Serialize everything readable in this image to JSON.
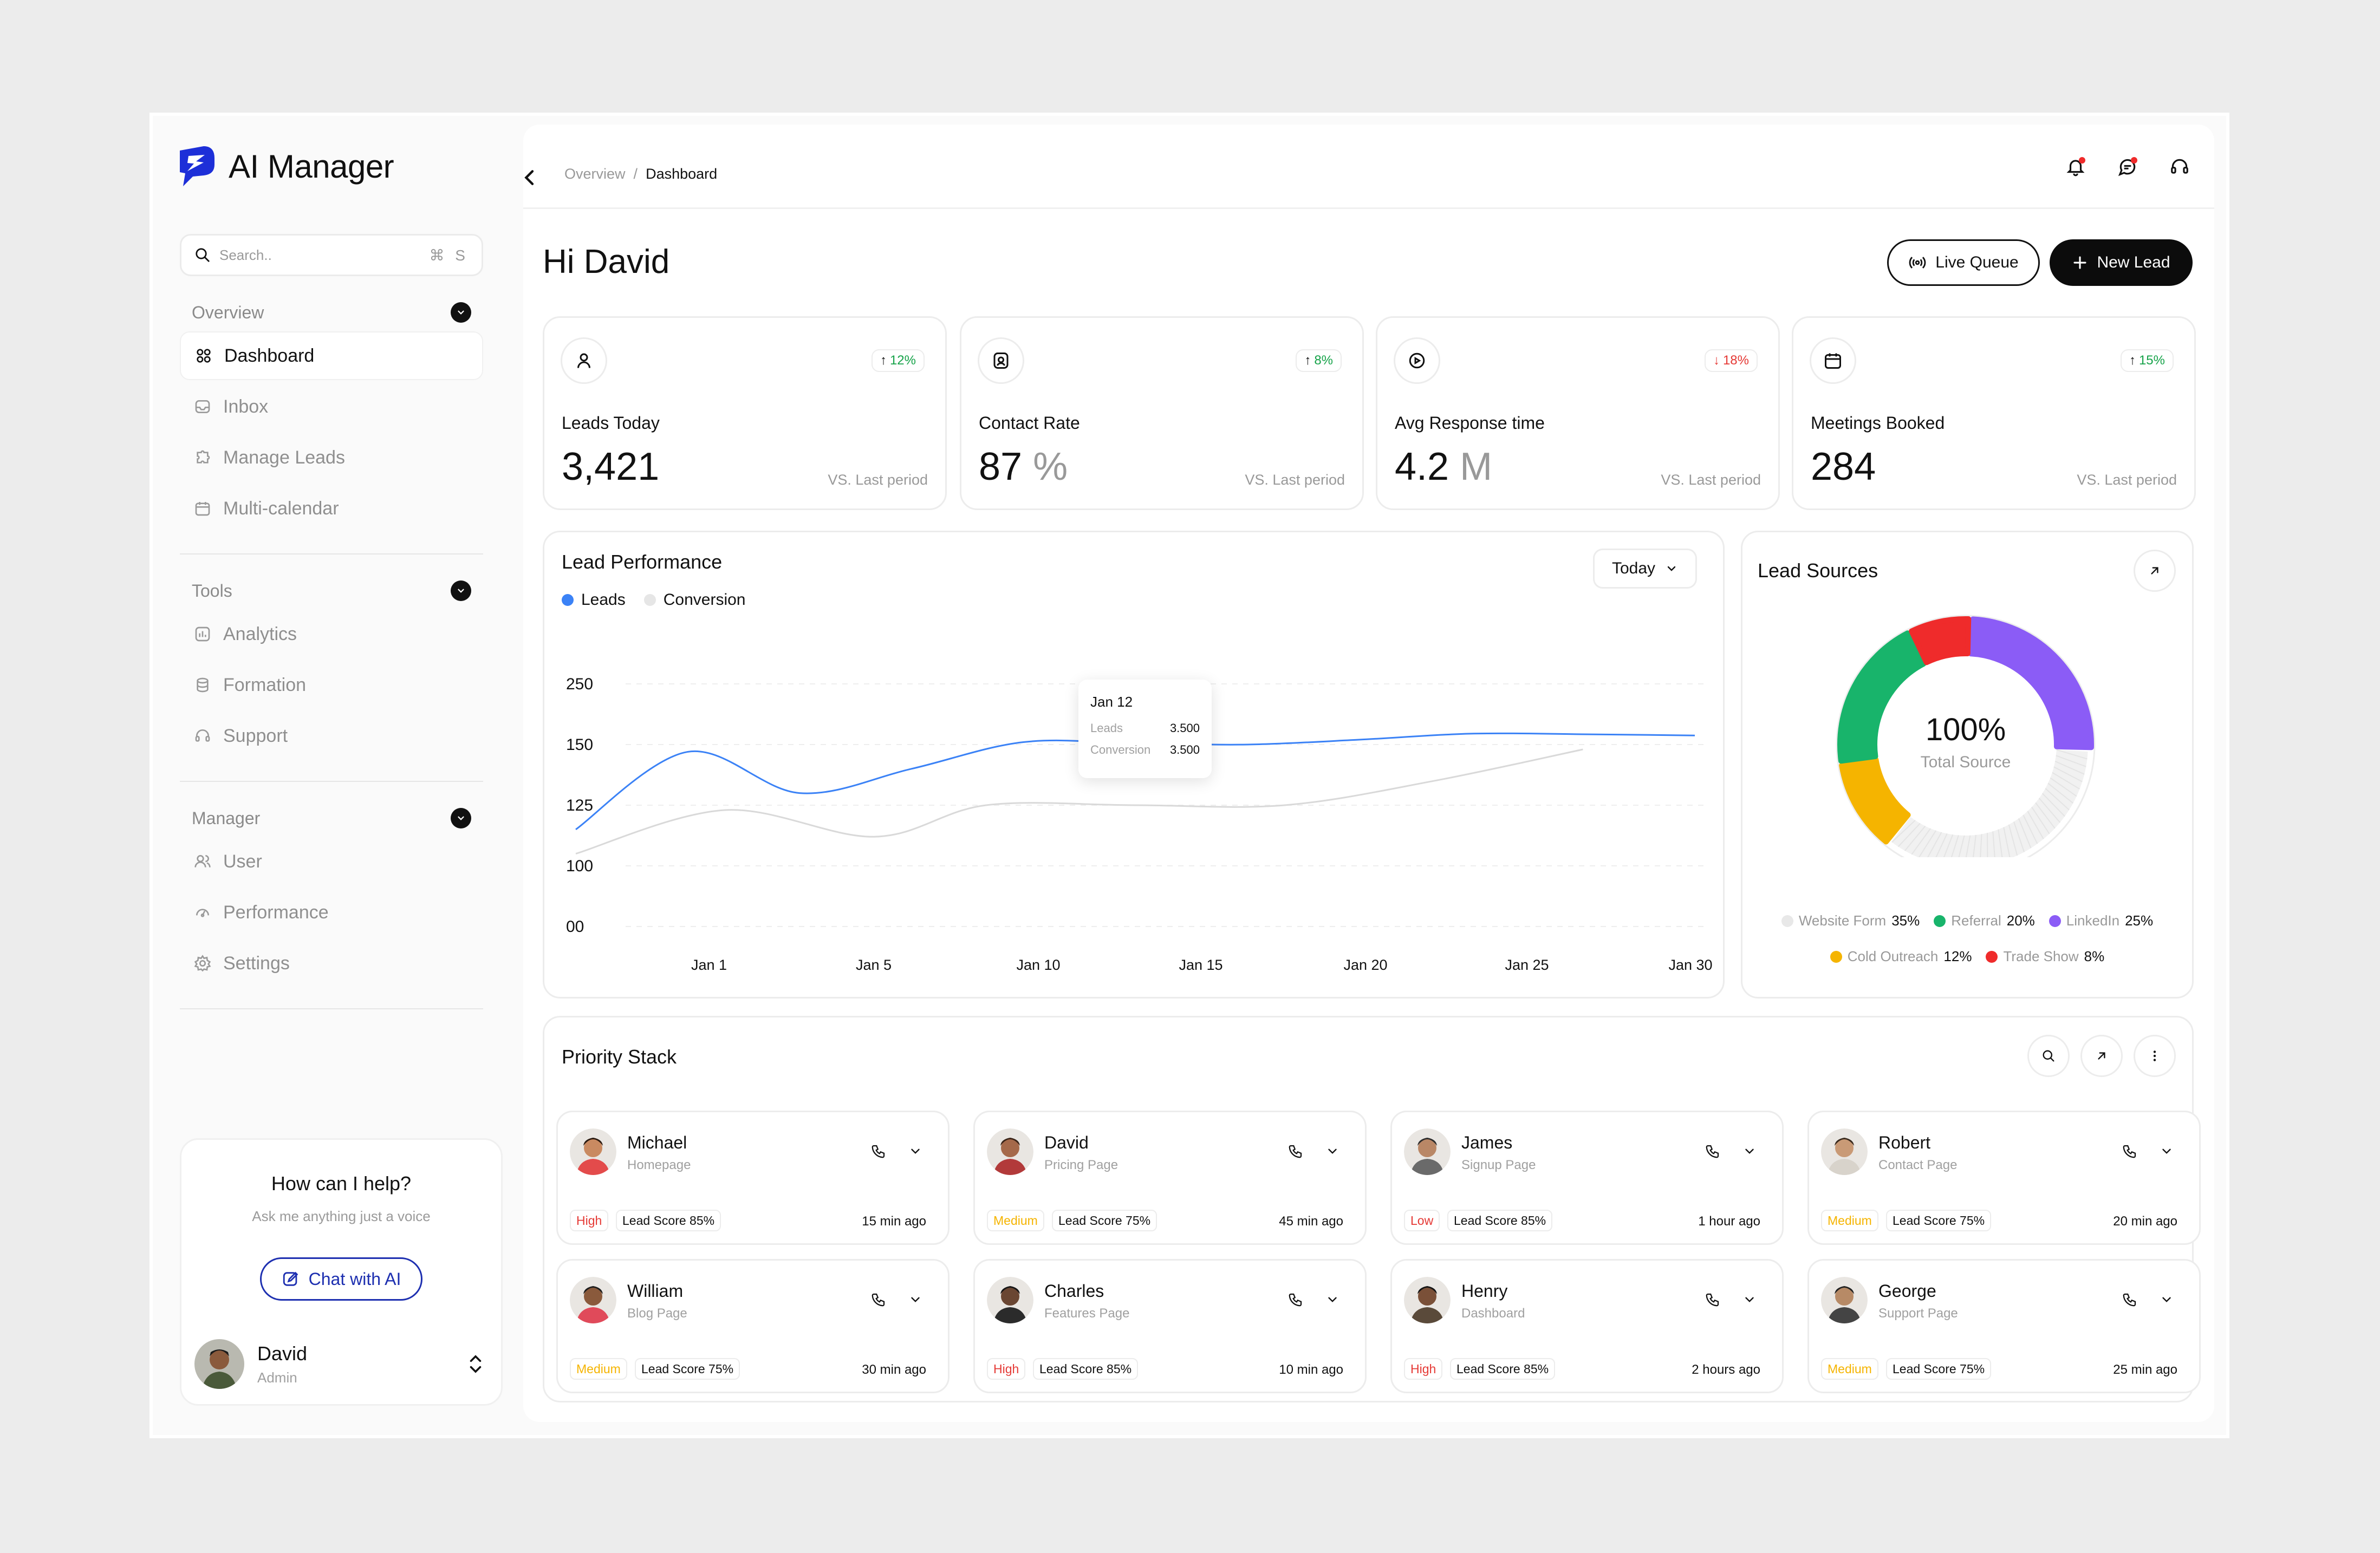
{
  "app": {
    "name": "AI Manager"
  },
  "search": {
    "placeholder": "Search..",
    "shortcut": "⌘ S"
  },
  "sidebar": {
    "sections": [
      {
        "title": "Overview",
        "items": [
          {
            "label": "Dashboard",
            "icon": "grid-icon",
            "active": true
          },
          {
            "label": "Inbox",
            "icon": "inbox-icon"
          },
          {
            "label": "Manage Leads",
            "icon": "puzzle-icon"
          },
          {
            "label": "Multi-calendar",
            "icon": "calendar-icon"
          }
        ]
      },
      {
        "title": "Tools",
        "items": [
          {
            "label": "Analytics",
            "icon": "analytics-icon"
          },
          {
            "label": "Formation",
            "icon": "database-icon"
          },
          {
            "label": "Support",
            "icon": "headset-icon"
          }
        ]
      },
      {
        "title": "Manager",
        "items": [
          {
            "label": "User",
            "icon": "users-icon"
          },
          {
            "label": "Performance",
            "icon": "performance-icon"
          },
          {
            "label": "Settings",
            "icon": "settings-icon"
          }
        ]
      }
    ],
    "help": {
      "title": "How can I help?",
      "subtitle": "Ask me anything just a voice",
      "button": "Chat with AI"
    },
    "user": {
      "name": "David",
      "role": "Admin"
    }
  },
  "topbar": {
    "crumb_parent": "Overview",
    "crumb_sep": "/",
    "crumb_current": "Dashboard"
  },
  "header": {
    "greeting": "Hi David",
    "live_queue": "Live Queue",
    "new_lead": "New Lead"
  },
  "stats": [
    {
      "label": "Leads Today",
      "value": "3,421",
      "unit": "",
      "change": "12%",
      "direction": "up",
      "note": "VS. Last period",
      "icon": "user-icon"
    },
    {
      "label": "Contact Rate",
      "value": "87",
      "unit": "%",
      "change": "8%",
      "direction": "up",
      "note": "VS. Last period",
      "icon": "contact-icon"
    },
    {
      "label": "Avg Response time",
      "value": "4.2",
      "unit": "M",
      "change": "18%",
      "direction": "down",
      "note": "VS. Last period",
      "icon": "clock-icon"
    },
    {
      "label": "Meetings Booked",
      "value": "284",
      "unit": "",
      "change": "15%",
      "direction": "up",
      "note": "VS. Last period",
      "icon": "calendar-icon"
    }
  ],
  "performance": {
    "title": "Lead Performance",
    "range": "Today",
    "legend": {
      "leads": "Leads",
      "conversion": "Conversion"
    },
    "tooltip": {
      "title": "Jan 12",
      "k1": "Leads",
      "v1": "3.500",
      "k2": "Conversion",
      "v2": "3.500"
    }
  },
  "chart_data": {
    "type": "line",
    "title": "Lead Performance",
    "y_tick_labels": [
      "250",
      "150",
      "125",
      "100",
      "00"
    ],
    "x_tick_labels": [
      "Jan 1",
      "Jan 5",
      "Jan 10",
      "Jan 15",
      "Jan 20",
      "Jan 25",
      "Jan 30"
    ],
    "grid": true,
    "legend": "top-left",
    "series": [
      {
        "name": "Leads",
        "color": "#3b82f6",
        "points": [
          [
            0,
            115
          ],
          [
            3,
            147
          ],
          [
            6,
            130
          ],
          [
            9,
            140
          ],
          [
            12,
            154
          ],
          [
            15,
            152
          ],
          [
            18,
            150
          ],
          [
            21,
            158
          ],
          [
            24,
            168
          ],
          [
            27,
            167
          ],
          [
            30,
            165
          ]
        ]
      },
      {
        "name": "Conversion",
        "color": "#d9d9d9",
        "points": [
          [
            0,
            105
          ],
          [
            4,
            123
          ],
          [
            8,
            112
          ],
          [
            11,
            125
          ],
          [
            15,
            125
          ],
          [
            19,
            125
          ],
          [
            23,
            135
          ],
          [
            27,
            148
          ]
        ]
      }
    ]
  },
  "sources": {
    "title": "Lead Sources",
    "center_value": "100%",
    "center_label": "Total Source",
    "items": [
      {
        "name": "Website Form",
        "value": "35%",
        "pct": 35,
        "color": "#e8e8e8"
      },
      {
        "name": "Referral",
        "value": "20%",
        "pct": 20,
        "color": "#18b46b"
      },
      {
        "name": "LinkedIn",
        "value": "25%",
        "pct": 25,
        "color": "#8b5cf6"
      },
      {
        "name": "Cold Outreach",
        "value": "12%",
        "pct": 12,
        "color": "#f5b400"
      },
      {
        "name": "Trade Show",
        "value": "8%",
        "pct": 8,
        "color": "#ef2b2b"
      }
    ]
  },
  "priority": {
    "title": "Priority Stack",
    "leads": [
      {
        "name": "Michael",
        "source": "Homepage",
        "priority": "High",
        "score": "Lead Score 85%",
        "time": "15 min ago",
        "skin": "#c98a61",
        "hair": "#2a1a10",
        "shirt": "#e34b4b"
      },
      {
        "name": "David",
        "source": "Pricing Page",
        "priority": "Medium",
        "score": "Lead Score 75%",
        "time": "45 min ago",
        "skin": "#a5694a",
        "hair": "#3a2418",
        "shirt": "#b23a3a"
      },
      {
        "name": "James",
        "source": "Signup Page",
        "priority": "Low",
        "score": "Lead Score 85%",
        "time": "1 hour ago",
        "skin": "#b98766",
        "hair": "#2d2d2d",
        "shirt": "#6a6a6a"
      },
      {
        "name": "Robert",
        "source": "Contact Page",
        "priority": "Medium",
        "score": "Lead Score 75%",
        "time": "20 min ago",
        "skin": "#c99a76",
        "hair": "#3a2a1e",
        "shirt": "#d8d3cb"
      },
      {
        "name": "William",
        "source": "Blog Page",
        "priority": "Medium",
        "score": "Lead Score 75%",
        "time": "30 min ago",
        "skin": "#8a5a3c",
        "hair": "#1d1d1d",
        "shirt": "#e04a5a"
      },
      {
        "name": "Charles",
        "source": "Features Page",
        "priority": "High",
        "score": "Lead Score 85%",
        "time": "10 min ago",
        "skin": "#6a4632",
        "hair": "#151515",
        "shirt": "#2b2b2b"
      },
      {
        "name": "Henry",
        "source": "Dashboard",
        "priority": "High",
        "score": "Lead Score 85%",
        "time": "2 hours ago",
        "skin": "#7a5038",
        "hair": "#141414",
        "shirt": "#5a4a3a"
      },
      {
        "name": "George",
        "source": "Support Page",
        "priority": "Medium",
        "score": "Lead Score 75%",
        "time": "25 min ago",
        "skin": "#b78a66",
        "hair": "#222222",
        "shirt": "#444444"
      }
    ]
  },
  "colors": {
    "accent": "#1d2fb0",
    "leads": "#3b82f6",
    "conversion": "#d9d9d9",
    "positive": "#17a34a",
    "negative": "#e53935"
  }
}
